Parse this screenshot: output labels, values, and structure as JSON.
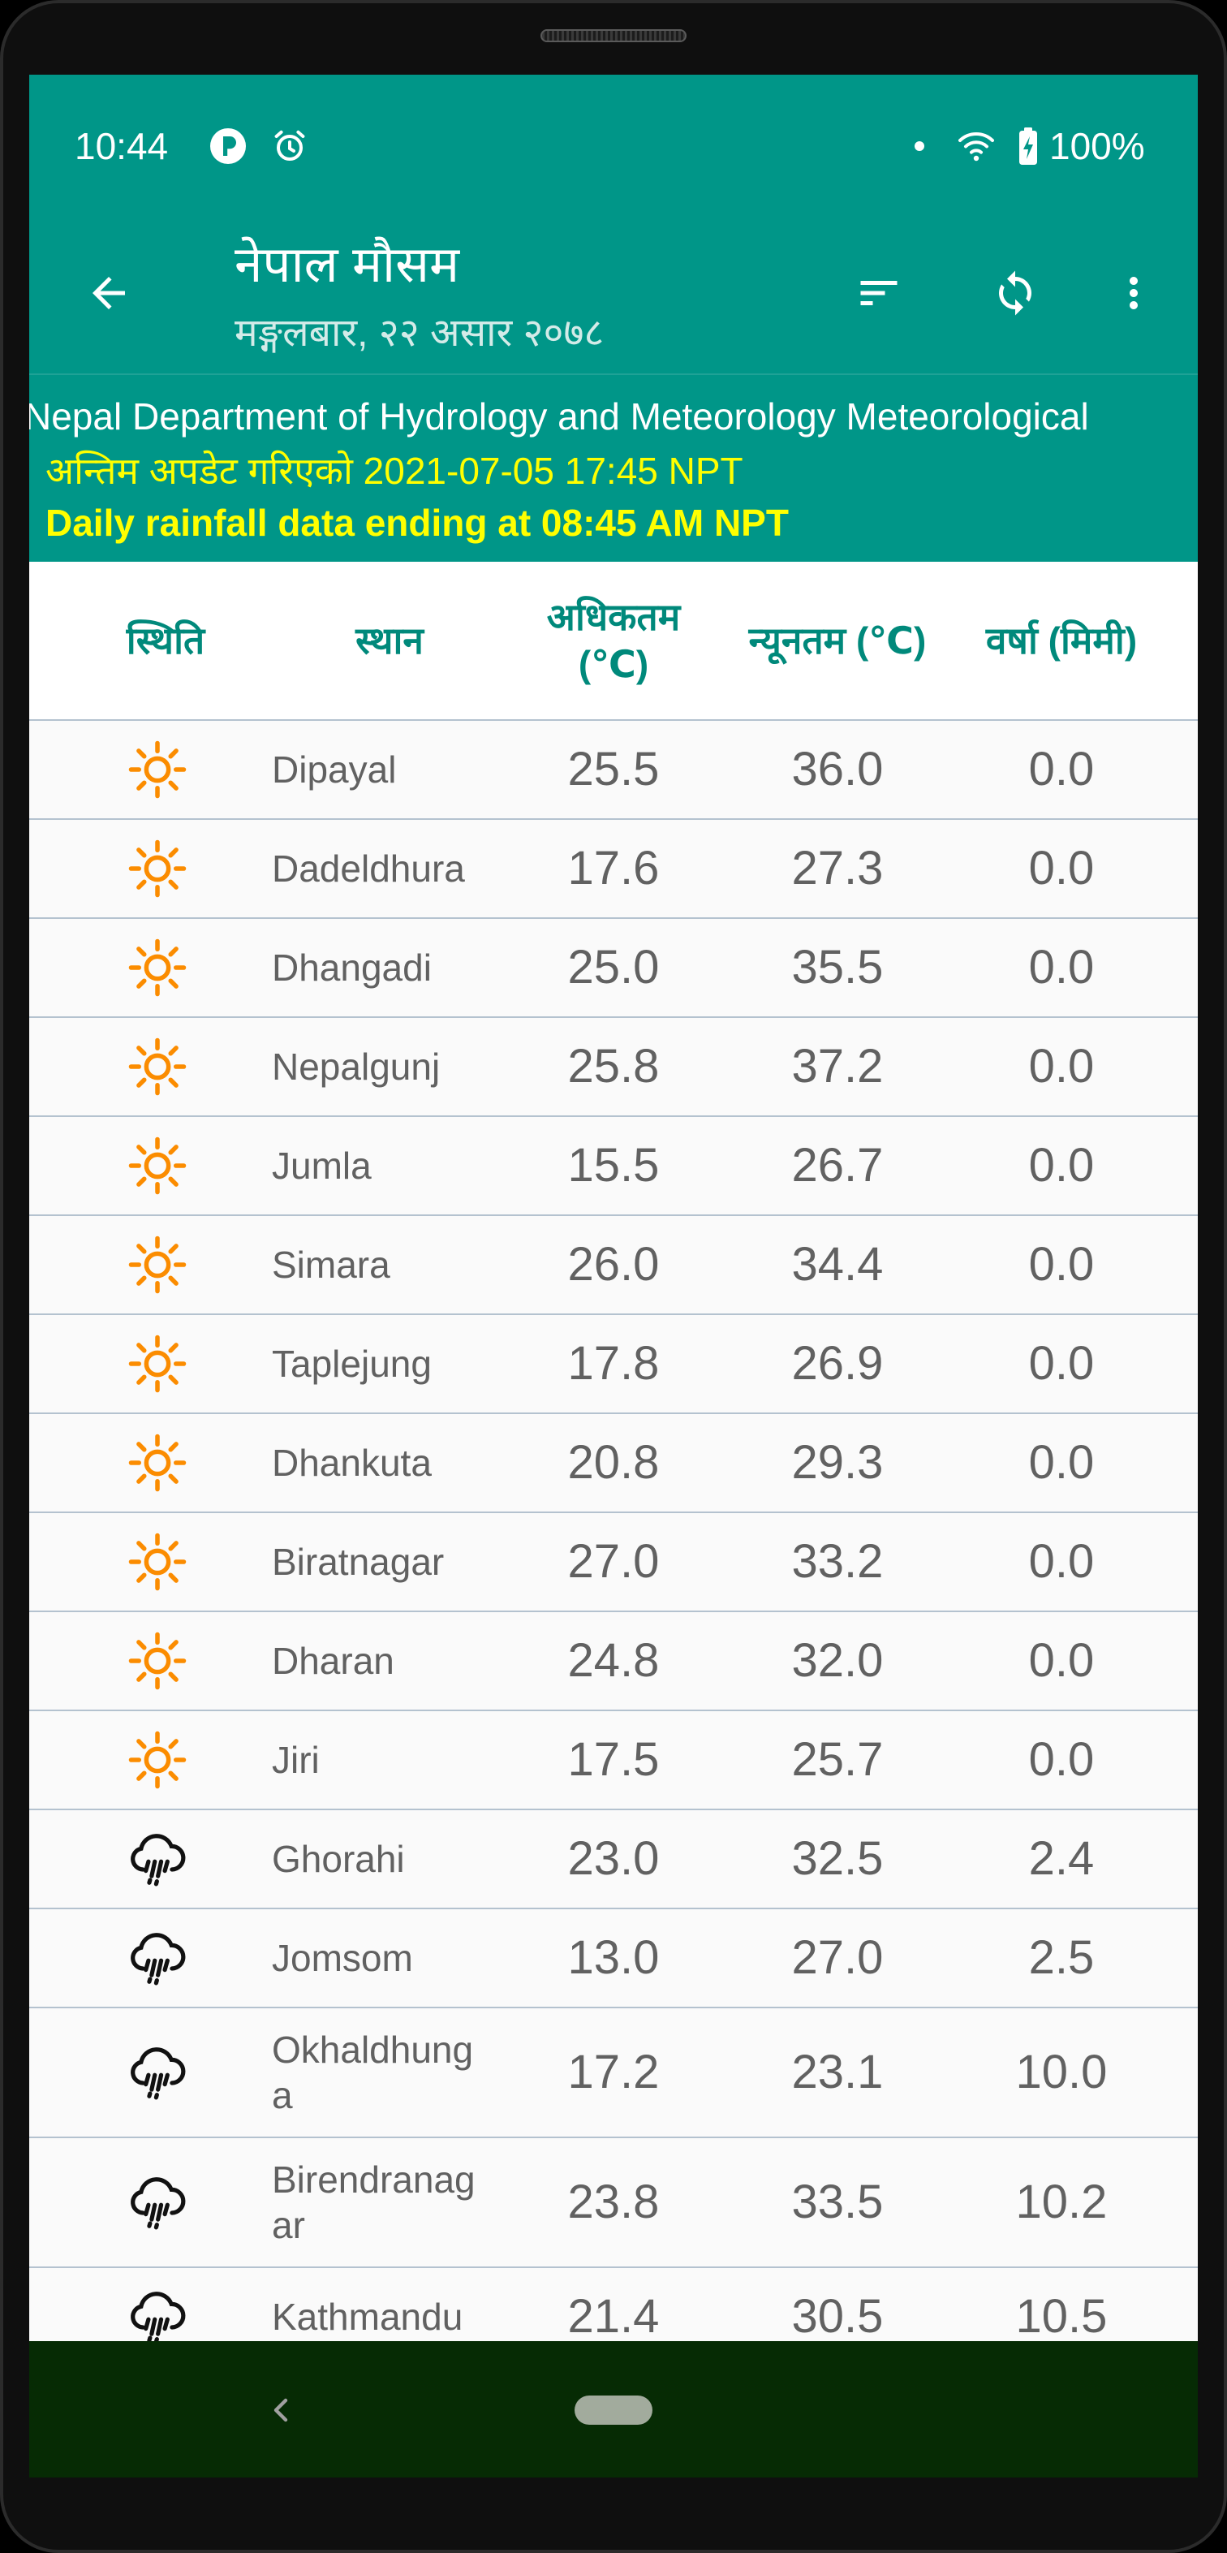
{
  "status_bar": {
    "time": "10:44",
    "battery_level": "100%",
    "icons": [
      "notification-app-icon",
      "alarm-icon",
      "dot-icon",
      "wifi-icon",
      "battery-charging-icon"
    ]
  },
  "app_bar": {
    "title": "नेपाल मौसम",
    "subtitle": "मङ्गलबार, २२ असार २०७८",
    "icons": [
      "back-arrow-icon",
      "sort-icon",
      "refresh-icon",
      "more-vert-icon"
    ]
  },
  "info_banner": {
    "source": "Nepal Department of Hydrology and Meteorology Meteorological",
    "last_updated": "अन्तिम अपडेट गरिएको 2021-07-05 17:45 NPT",
    "rainfall_note": "Daily rainfall data ending at 08:45 AM NPT"
  },
  "table": {
    "headers": [
      "स्थिति",
      "स्थान",
      "अधिकतम (℃)",
      "न्यूनतम (℃)",
      "वर्षा (मिमी)"
    ],
    "rows": [
      {
        "icon": "sun-icon",
        "station": "Dipayal",
        "max": "25.5",
        "min": "36.0",
        "rainfall": "0.0"
      },
      {
        "icon": "sun-icon",
        "station": "Dadeldhura",
        "max": "17.6",
        "min": "27.3",
        "rainfall": "0.0"
      },
      {
        "icon": "sun-icon",
        "station": "Dhangadi",
        "max": "25.0",
        "min": "35.5",
        "rainfall": "0.0"
      },
      {
        "icon": "sun-icon",
        "station": "Nepalgunj",
        "max": "25.8",
        "min": "37.2",
        "rainfall": "0.0"
      },
      {
        "icon": "sun-icon",
        "station": "Jumla",
        "max": "15.5",
        "min": "26.7",
        "rainfall": "0.0"
      },
      {
        "icon": "sun-icon",
        "station": "Simara",
        "max": "26.0",
        "min": "34.4",
        "rainfall": "0.0"
      },
      {
        "icon": "sun-icon",
        "station": "Taplejung",
        "max": "17.8",
        "min": "26.9",
        "rainfall": "0.0"
      },
      {
        "icon": "sun-icon",
        "station": "Dhankuta",
        "max": "20.8",
        "min": "29.3",
        "rainfall": "0.0"
      },
      {
        "icon": "sun-icon",
        "station": "Biratnagar",
        "max": "27.0",
        "min": "33.2",
        "rainfall": "0.0"
      },
      {
        "icon": "sun-icon",
        "station": "Dharan",
        "max": "24.8",
        "min": "32.0",
        "rainfall": "0.0"
      },
      {
        "icon": "sun-icon",
        "station": "Jiri",
        "max": "17.5",
        "min": "25.7",
        "rainfall": "0.0"
      },
      {
        "icon": "rain-cloud-icon",
        "station": "Ghorahi",
        "max": "23.0",
        "min": "32.5",
        "rainfall": "2.4"
      },
      {
        "icon": "rain-cloud-icon",
        "station": "Jomsom",
        "max": "13.0",
        "min": "27.0",
        "rainfall": "2.5"
      },
      {
        "icon": "rain-cloud-icon",
        "station": "Okhaldhunga",
        "max": "17.2",
        "min": "23.1",
        "rainfall": "10.0"
      },
      {
        "icon": "rain-cloud-icon",
        "station": "Birendranagar",
        "max": "23.8",
        "min": "33.5",
        "rainfall": "10.2"
      },
      {
        "icon": "rain-cloud-icon",
        "station": "Kathmandu",
        "max": "21.4",
        "min": "30.5",
        "rainfall": "10.5"
      }
    ]
  },
  "navigation_bar": {
    "icons": [
      "nav-back-icon",
      "home-pill-icon"
    ]
  },
  "colors": {
    "primary": "#009688",
    "header_text": "#00897B",
    "highlight_text": "#FFFF00",
    "sunny_icon": "#FB8C00",
    "nav_bar": "#062B04"
  }
}
